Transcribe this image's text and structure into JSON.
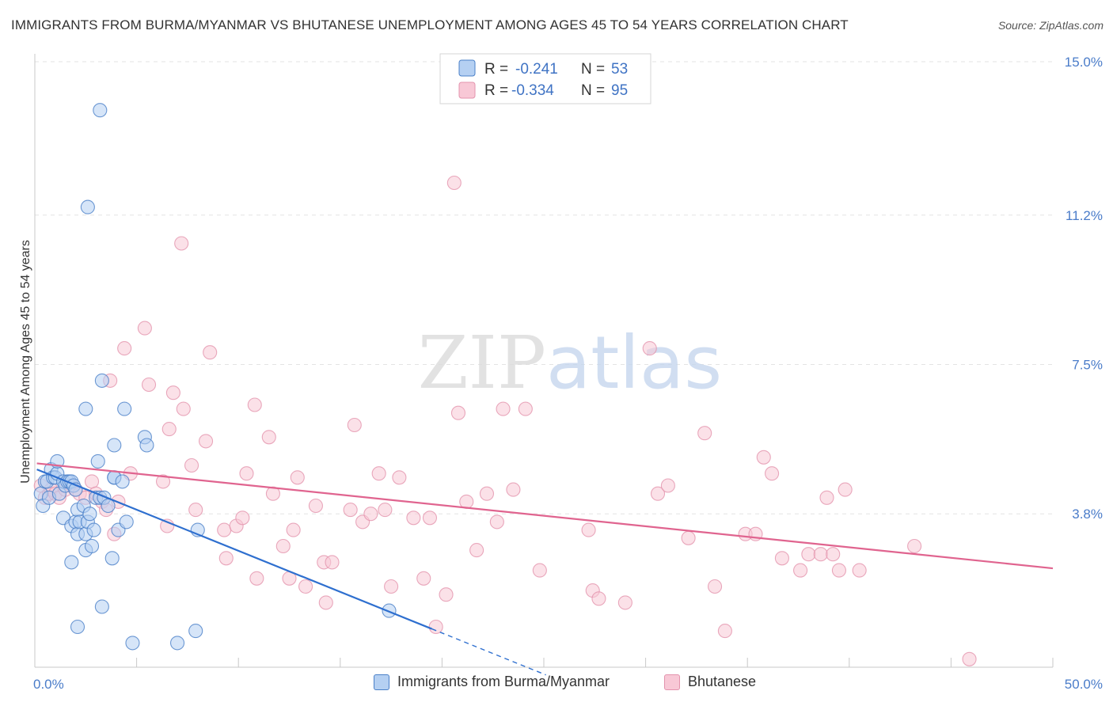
{
  "chart_data": {
    "type": "scatter",
    "title": "IMMIGRANTS FROM BURMA/MYANMAR VS BHUTANESE UNEMPLOYMENT AMONG AGES 45 TO 54 YEARS CORRELATION CHART",
    "source": "Source: ZipAtlas.com",
    "watermark": "ZIPatlas",
    "xlabel": "",
    "ylabel": "Unemployment Among Ages 45 to 54 years",
    "xlim": [
      0,
      50
    ],
    "ylim": [
      0,
      15
    ],
    "x_tick_labels": [
      "0.0%",
      "50.0%"
    ],
    "y_ticks": [
      3.8,
      7.5,
      11.2,
      15.0
    ],
    "y_tick_labels": [
      "3.8%",
      "7.5%",
      "11.2%",
      "15.0%"
    ],
    "colors": {
      "blue_fill": "#b5d0f2",
      "blue_stroke": "#4a80c8",
      "blue_line": "#2e6fcf",
      "pink_fill": "#f8c8d6",
      "pink_stroke": "#e393ad",
      "pink_line": "#e0648f",
      "tick_label": "#4a7cc9",
      "grid": "#e3e3e3"
    },
    "legend_top": {
      "r_label": "R =",
      "n_label": "N =",
      "rows": [
        {
          "r": "-0.241",
          "n": "53"
        },
        {
          "r": "-0.334",
          "n": "95"
        }
      ]
    },
    "series": [
      {
        "name": "Immigrants from Burma/Myanmar",
        "r": -0.241,
        "n": 53,
        "trend": {
          "x0": 0.1,
          "y0": 4.9,
          "x1": 19.5,
          "y1": 0.95,
          "dash_to_x": 25.1
        },
        "points": [
          [
            0.3,
            4.3
          ],
          [
            0.4,
            4.0
          ],
          [
            0.5,
            4.6
          ],
          [
            0.6,
            4.6
          ],
          [
            0.7,
            4.2
          ],
          [
            0.8,
            4.9
          ],
          [
            0.9,
            4.7
          ],
          [
            1.0,
            4.7
          ],
          [
            1.1,
            4.8
          ],
          [
            1.1,
            5.1
          ],
          [
            1.2,
            4.3
          ],
          [
            1.4,
            4.6
          ],
          [
            1.4,
            3.7
          ],
          [
            1.5,
            4.5
          ],
          [
            1.6,
            4.6
          ],
          [
            1.7,
            4.6
          ],
          [
            1.8,
            4.6
          ],
          [
            1.8,
            3.5
          ],
          [
            1.8,
            2.6
          ],
          [
            1.9,
            4.5
          ],
          [
            2.0,
            4.4
          ],
          [
            2.0,
            3.6
          ],
          [
            2.1,
            3.9
          ],
          [
            2.1,
            1.0
          ],
          [
            2.1,
            3.3
          ],
          [
            2.2,
            3.6
          ],
          [
            2.4,
            4.0
          ],
          [
            2.5,
            3.3
          ],
          [
            2.5,
            2.9
          ],
          [
            2.6,
            3.6
          ],
          [
            2.7,
            3.8
          ],
          [
            2.8,
            3.0
          ],
          [
            2.9,
            3.4
          ],
          [
            3.0,
            4.2
          ],
          [
            3.1,
            5.1
          ],
          [
            3.2,
            4.2
          ],
          [
            3.3,
            1.5
          ],
          [
            3.3,
            7.1
          ],
          [
            3.4,
            4.2
          ],
          [
            3.6,
            4.0
          ],
          [
            3.8,
            2.7
          ],
          [
            3.9,
            5.5
          ],
          [
            3.9,
            4.7
          ],
          [
            3.9,
            4.7
          ],
          [
            4.1,
            3.4
          ],
          [
            4.3,
            4.6
          ],
          [
            4.4,
            6.4
          ],
          [
            4.5,
            3.6
          ],
          [
            4.8,
            0.6
          ],
          [
            5.4,
            5.7
          ],
          [
            5.5,
            5.5
          ],
          [
            8.0,
            3.4
          ],
          [
            2.6,
            11.4
          ],
          [
            3.2,
            13.8
          ],
          [
            7.0,
            0.6
          ],
          [
            7.9,
            0.9
          ],
          [
            17.4,
            1.4
          ],
          [
            2.5,
            6.4
          ]
        ]
      },
      {
        "name": "Bhutanese",
        "r": -0.334,
        "n": 95,
        "trend": {
          "x0": 0.1,
          "y0": 5.05,
          "x1": 50.0,
          "y1": 2.45
        },
        "points": [
          [
            0.3,
            4.5
          ],
          [
            0.5,
            4.2
          ],
          [
            0.7,
            4.3
          ],
          [
            0.8,
            4.4
          ],
          [
            1.0,
            4.3
          ],
          [
            1.2,
            4.2
          ],
          [
            1.5,
            4.4
          ],
          [
            1.8,
            4.5
          ],
          [
            2.0,
            4.4
          ],
          [
            2.2,
            4.3
          ],
          [
            2.5,
            4.2
          ],
          [
            2.8,
            4.6
          ],
          [
            3.0,
            4.3
          ],
          [
            3.3,
            4.1
          ],
          [
            3.5,
            3.9
          ],
          [
            3.7,
            7.1
          ],
          [
            3.9,
            3.3
          ],
          [
            4.1,
            4.1
          ],
          [
            4.4,
            7.9
          ],
          [
            4.7,
            4.8
          ],
          [
            5.4,
            8.4
          ],
          [
            5.6,
            7.0
          ],
          [
            6.3,
            4.6
          ],
          [
            6.5,
            3.5
          ],
          [
            6.6,
            5.9
          ],
          [
            6.8,
            6.8
          ],
          [
            7.2,
            10.5
          ],
          [
            7.3,
            6.4
          ],
          [
            7.7,
            5.0
          ],
          [
            7.9,
            3.9
          ],
          [
            8.4,
            5.6
          ],
          [
            8.6,
            7.8
          ],
          [
            9.3,
            3.4
          ],
          [
            9.4,
            2.7
          ],
          [
            9.9,
            3.5
          ],
          [
            10.2,
            3.7
          ],
          [
            10.4,
            4.8
          ],
          [
            10.8,
            6.5
          ],
          [
            10.9,
            2.2
          ],
          [
            11.5,
            5.7
          ],
          [
            11.7,
            4.3
          ],
          [
            12.2,
            3.0
          ],
          [
            12.5,
            2.2
          ],
          [
            12.7,
            3.4
          ],
          [
            12.9,
            4.7
          ],
          [
            13.3,
            2.0
          ],
          [
            13.8,
            4.0
          ],
          [
            14.2,
            2.6
          ],
          [
            14.3,
            1.6
          ],
          [
            14.6,
            2.6
          ],
          [
            15.5,
            3.9
          ],
          [
            15.7,
            6.0
          ],
          [
            16.1,
            3.6
          ],
          [
            16.5,
            3.8
          ],
          [
            16.9,
            4.8
          ],
          [
            17.2,
            3.9
          ],
          [
            17.5,
            2.0
          ],
          [
            17.9,
            4.7
          ],
          [
            18.6,
            3.7
          ],
          [
            19.1,
            2.2
          ],
          [
            19.4,
            3.7
          ],
          [
            19.7,
            1.0
          ],
          [
            20.2,
            1.8
          ],
          [
            20.6,
            12.0
          ],
          [
            20.8,
            6.3
          ],
          [
            21.2,
            4.1
          ],
          [
            21.7,
            2.9
          ],
          [
            22.2,
            4.3
          ],
          [
            22.7,
            3.6
          ],
          [
            23.0,
            6.4
          ],
          [
            23.5,
            4.4
          ],
          [
            24.1,
            6.4
          ],
          [
            24.8,
            2.4
          ],
          [
            27.2,
            3.4
          ],
          [
            27.4,
            1.9
          ],
          [
            27.7,
            1.7
          ],
          [
            29.0,
            1.6
          ],
          [
            30.2,
            7.9
          ],
          [
            30.6,
            4.3
          ],
          [
            31.1,
            4.5
          ],
          [
            32.1,
            3.2
          ],
          [
            32.9,
            5.8
          ],
          [
            33.4,
            2.0
          ],
          [
            33.9,
            0.9
          ],
          [
            34.9,
            3.3
          ],
          [
            35.4,
            3.3
          ],
          [
            35.8,
            5.2
          ],
          [
            36.2,
            4.8
          ],
          [
            36.7,
            2.7
          ],
          [
            37.6,
            2.4
          ],
          [
            38.0,
            2.8
          ],
          [
            38.6,
            2.8
          ],
          [
            38.9,
            4.2
          ],
          [
            39.2,
            2.8
          ],
          [
            39.5,
            2.4
          ],
          [
            39.8,
            4.4
          ],
          [
            40.5,
            2.4
          ],
          [
            43.2,
            3.0
          ],
          [
            45.9,
            0.2
          ]
        ]
      }
    ]
  }
}
